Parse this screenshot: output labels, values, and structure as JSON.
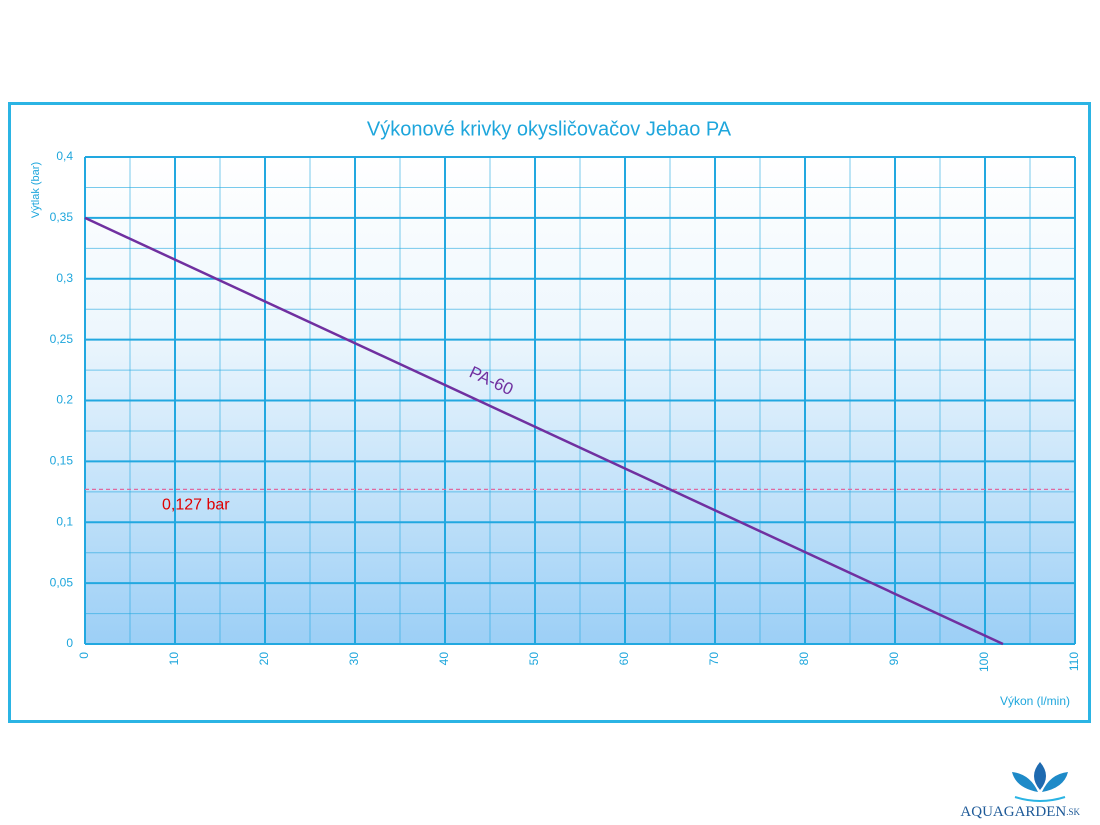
{
  "chart_data": {
    "type": "line",
    "title": "Výkonové krivky okysličovačov Jebao PA",
    "x_label": "Výkon (l/min)",
    "y_label": "Výtlak (bar)",
    "series": [
      {
        "name": "PA-60",
        "color": "#7030a0",
        "x": [
          0,
          102
        ],
        "values": [
          0.35,
          0
        ]
      }
    ],
    "reference_line": {
      "value": 0.127,
      "label": "0,127 bar",
      "color": "#e06aa0",
      "label_color": "#e00000"
    },
    "xlim": [
      0,
      110
    ],
    "xticks": [
      0,
      10,
      20,
      30,
      40,
      50,
      60,
      70,
      80,
      90,
      100,
      110
    ],
    "ylim": [
      0,
      0.4
    ],
    "yticks": [
      0,
      {
        "value": 0.05,
        "label": "0,05"
      },
      {
        "value": 0.1,
        "label": "0,1"
      },
      {
        "value": 0.15,
        "label": "0,15"
      },
      0.2,
      {
        "value": 0.25,
        "label": "0,25"
      },
      {
        "value": 0.3,
        "label": "0,3"
      },
      {
        "value": 0.35,
        "label": "0,35"
      },
      {
        "value": 0.4,
        "label": "0,4"
      }
    ],
    "grid": true,
    "grid_color": "#22a8e0",
    "logo": {
      "name": "AQUAGARDEN",
      "suffix": ".SK"
    }
  }
}
